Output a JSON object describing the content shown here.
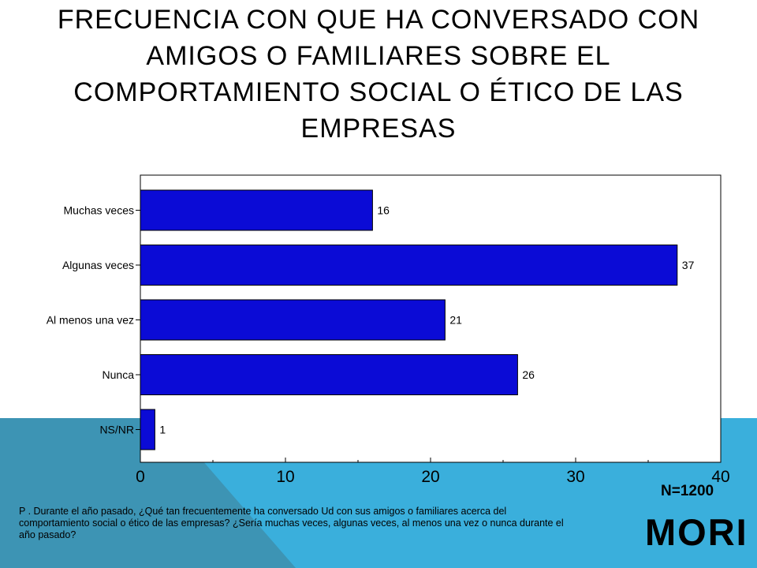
{
  "slide": {
    "title_lines": [
      "FRECUENCIA CON QUE HA CONVERSADO CON",
      "AMIGOS O FAMILIARES SOBRE EL",
      "COMPORTAMIENTO SOCIAL O ÉTICO DE LAS",
      "EMPRESAS"
    ],
    "question": "P . Durante el año pasado, ¿Qué tan frecuentemente ha conversado Ud con sus amigos o familiares acerca del comportamiento social o ético de las empresas? ¿Sería muchas veces, algunas veces, al menos una vez o nunca durante el año pasado?",
    "sample_size": "N=1200",
    "brand": "MORI"
  },
  "colors": {
    "bar_fill": "#0b0bd6",
    "background_blue": "#3aafdc",
    "background_orange": "#f4781e"
  },
  "chart_data": {
    "type": "bar",
    "orientation": "horizontal",
    "categories": [
      "Muchas veces",
      "Algunas veces",
      "Al menos una vez",
      "Nunca",
      "NS/NR"
    ],
    "values": [
      16,
      37,
      21,
      26,
      1
    ],
    "data_labels": [
      "16",
      "37",
      "21",
      "26",
      "1"
    ],
    "xlim": [
      0,
      40
    ],
    "x_ticks": [
      0,
      10,
      20,
      30,
      40
    ],
    "x_tick_labels": [
      "0",
      "10",
      "20",
      "30",
      "40"
    ],
    "grid": false,
    "legend": "none"
  }
}
